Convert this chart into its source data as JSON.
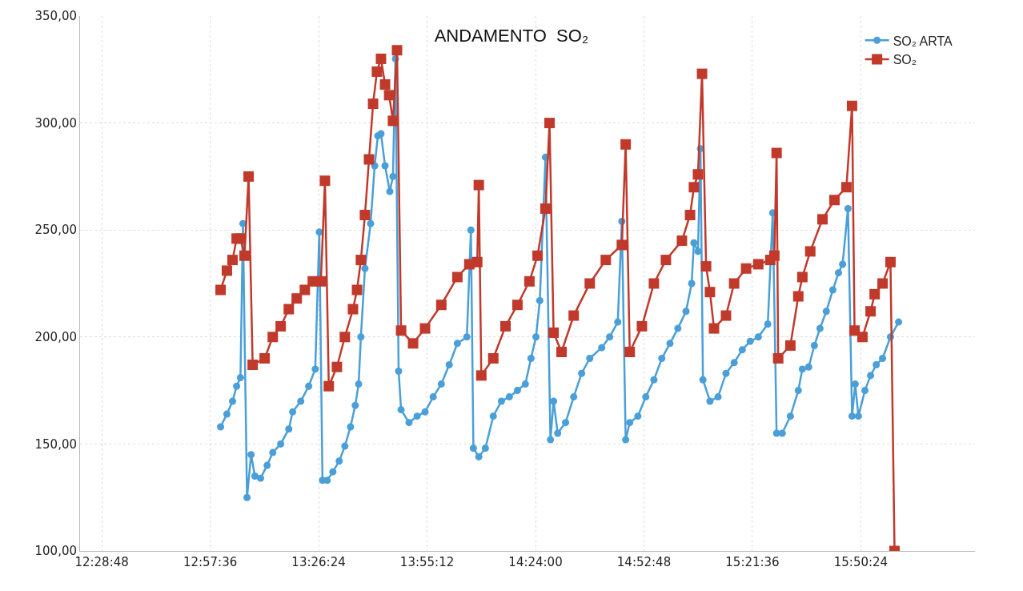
{
  "chart_data": {
    "type": "line",
    "title": "ANDAMENTO  SO₂",
    "xlim": [
      12.384,
      16.345
    ],
    "xticks": [
      {
        "value": 12.48,
        "label": "12:28:48"
      },
      {
        "value": 12.96,
        "label": "12:57:36"
      },
      {
        "value": 13.44,
        "label": "13:26:24"
      },
      {
        "value": 13.92,
        "label": "13:55:12"
      },
      {
        "value": 14.4,
        "label": "14:24:00"
      },
      {
        "value": 14.88,
        "label": "14:52:48"
      },
      {
        "value": 15.36,
        "label": "15:21:36"
      },
      {
        "value": 15.84,
        "label": "15:50:24"
      }
    ],
    "ylim": [
      100,
      350
    ],
    "yticks": [
      {
        "value": 100,
        "label": "100,00"
      },
      {
        "value": 150,
        "label": "150,00"
      },
      {
        "value": 200,
        "label": "200,00"
      },
      {
        "value": 250,
        "label": "250,00"
      },
      {
        "value": 300,
        "label": "300,00"
      },
      {
        "value": 350,
        "label": "350,00"
      }
    ],
    "grid": true,
    "legend": "top right",
    "line_style": "solid",
    "series": [
      {
        "name": "SO₂ ARTA",
        "color": "#4a9fd8",
        "marker": "circle",
        "x": [
          13.006,
          13.034,
          13.059,
          13.077,
          13.094,
          13.105,
          13.123,
          13.141,
          13.158,
          13.183,
          13.212,
          13.237,
          13.272,
          13.308,
          13.325,
          13.361,
          13.396,
          13.425,
          13.443,
          13.457,
          13.478,
          13.503,
          13.531,
          13.556,
          13.581,
          13.602,
          13.617,
          13.627,
          13.645,
          13.67,
          13.688,
          13.702,
          13.716,
          13.734,
          13.755,
          13.769,
          13.78,
          13.794,
          13.805,
          13.84,
          13.876,
          13.911,
          13.947,
          13.983,
          14.018,
          14.054,
          14.096,
          14.114,
          14.125,
          14.149,
          14.178,
          14.213,
          14.249,
          14.284,
          14.32,
          14.355,
          14.38,
          14.402,
          14.419,
          14.444,
          14.466,
          14.48,
          14.498,
          14.533,
          14.569,
          14.604,
          14.64,
          14.693,
          14.728,
          14.764,
          14.782,
          14.799,
          14.817,
          14.853,
          14.888,
          14.924,
          14.959,
          14.995,
          15.03,
          15.066,
          15.091,
          15.101,
          15.119,
          15.13,
          15.141,
          15.172,
          15.208,
          15.243,
          15.279,
          15.315,
          15.35,
          15.386,
          15.428,
          15.45,
          15.467,
          15.492,
          15.528,
          15.563,
          15.581,
          15.609,
          15.634,
          15.659,
          15.687,
          15.716,
          15.741,
          15.759,
          15.783,
          15.801,
          15.815,
          15.829,
          15.858,
          15.883,
          15.908,
          15.936,
          15.971,
          16.007
        ],
        "values": [
          158,
          164,
          170,
          177,
          181,
          253,
          125,
          145,
          135,
          134,
          140,
          146,
          150,
          157,
          165,
          170,
          177,
          185,
          249,
          133,
          133,
          137,
          142,
          149,
          158,
          168,
          178,
          200,
          232,
          253,
          280,
          294,
          295,
          280,
          268,
          275,
          330,
          184,
          166,
          160,
          163,
          165,
          172,
          178,
          187,
          197,
          200,
          250,
          148,
          144,
          148,
          163,
          170,
          172,
          175,
          178,
          190,
          200,
          217,
          284,
          152,
          170,
          155,
          160,
          172,
          183,
          190,
          195,
          200,
          207,
          254,
          152,
          160,
          163,
          172,
          180,
          190,
          197,
          204,
          212,
          225,
          244,
          240,
          288,
          180,
          170,
          172,
          183,
          188,
          194,
          198,
          200,
          206,
          258,
          155,
          155,
          163,
          175,
          185,
          186,
          196,
          204,
          212,
          222,
          230,
          234,
          260,
          163,
          178,
          163,
          175,
          182,
          187,
          190,
          200,
          207
        ]
      },
      {
        "name": "SO₂",
        "color": "#c0392b",
        "marker": "square",
        "x": [
          13.006,
          13.034,
          13.059,
          13.077,
          13.094,
          13.112,
          13.13,
          13.148,
          13.201,
          13.237,
          13.272,
          13.308,
          13.343,
          13.379,
          13.414,
          13.45,
          13.468,
          13.485,
          13.521,
          13.556,
          13.592,
          13.61,
          13.627,
          13.645,
          13.663,
          13.681,
          13.698,
          13.716,
          13.734,
          13.752,
          13.769,
          13.787,
          13.805,
          13.858,
          13.911,
          13.983,
          14.054,
          14.107,
          14.142,
          14.149,
          14.16,
          14.213,
          14.267,
          14.32,
          14.373,
          14.409,
          14.444,
          14.462,
          14.48,
          14.515,
          14.569,
          14.64,
          14.711,
          14.782,
          14.799,
          14.817,
          14.871,
          14.924,
          14.977,
          15.048,
          15.084,
          15.101,
          15.119,
          15.137,
          15.155,
          15.172,
          15.19,
          15.243,
          15.279,
          15.332,
          15.386,
          15.439,
          15.457,
          15.467,
          15.474,
          15.528,
          15.563,
          15.581,
          15.616,
          15.67,
          15.723,
          15.776,
          15.801,
          15.812,
          15.847,
          15.883,
          15.901,
          15.936,
          15.971,
          15.989
        ],
        "values": [
          222,
          231,
          236,
          246,
          246,
          238,
          275,
          187,
          190,
          200,
          205,
          213,
          218,
          222,
          226,
          226,
          273,
          177,
          186,
          200,
          213,
          222,
          236,
          257,
          283,
          309,
          324,
          330,
          318,
          313,
          301,
          334,
          203,
          197,
          204,
          215,
          228,
          234,
          235,
          271,
          182,
          190,
          205,
          215,
          226,
          238,
          260,
          300,
          202,
          193,
          210,
          225,
          236,
          243,
          290,
          193,
          205,
          225,
          236,
          245,
          257,
          270,
          276,
          323,
          233,
          221,
          204,
          210,
          225,
          232,
          234,
          236,
          238,
          286,
          190,
          196,
          219,
          228,
          240,
          255,
          264,
          270,
          308,
          203,
          200,
          212,
          220,
          225,
          235,
          100
        ]
      }
    ]
  }
}
